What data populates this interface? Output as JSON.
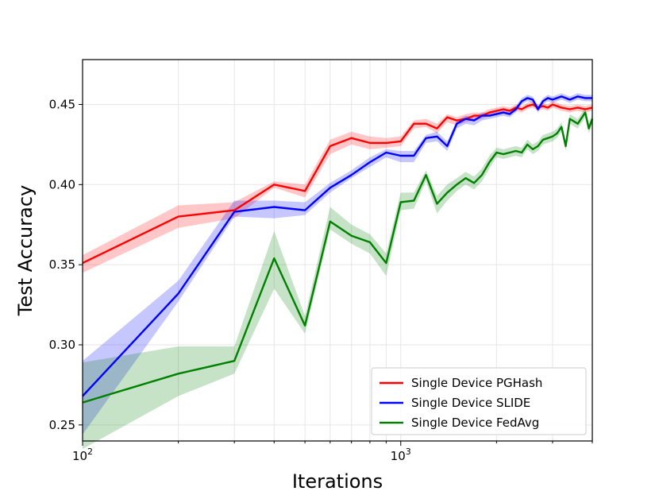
{
  "chart_data": {
    "type": "line",
    "xlabel": "Iterations",
    "ylabel": "Test Accuracy",
    "xscale": "log",
    "xlim": [
      100,
      4000
    ],
    "ylim": [
      0.24,
      0.478
    ],
    "grid": true,
    "legend_position": "lower-right",
    "x_ticks": [
      {
        "value": 100,
        "base": "10",
        "exp": "2"
      },
      {
        "value": 1000,
        "base": "10",
        "exp": "3"
      }
    ],
    "y_ticks": [
      {
        "value": 0.25,
        "label": "0.25"
      },
      {
        "value": 0.3,
        "label": "0.30"
      },
      {
        "value": 0.35,
        "label": "0.35"
      },
      {
        "value": 0.4,
        "label": "0.40"
      },
      {
        "value": 0.45,
        "label": "0.45"
      }
    ],
    "series": [
      {
        "name": "Single Device PGHash",
        "color": "#ff0000",
        "points": [
          [
            100,
            0.351,
            0.345,
            0.356
          ],
          [
            200,
            0.38,
            0.373,
            0.387
          ],
          [
            300,
            0.384,
            0.379,
            0.389
          ],
          [
            400,
            0.4,
            0.398,
            0.402
          ],
          [
            500,
            0.396,
            0.392,
            0.4
          ],
          [
            600,
            0.424,
            0.419,
            0.428
          ],
          [
            700,
            0.429,
            0.425,
            0.433
          ],
          [
            800,
            0.426,
            0.422,
            0.43
          ],
          [
            900,
            0.426,
            0.423,
            0.429
          ],
          [
            1000,
            0.427,
            0.424,
            0.43
          ],
          [
            1100,
            0.438,
            0.435,
            0.44
          ],
          [
            1200,
            0.438,
            0.436,
            0.441
          ],
          [
            1300,
            0.435,
            0.432,
            0.438
          ],
          [
            1400,
            0.442,
            0.439,
            0.444
          ],
          [
            1500,
            0.44,
            0.437,
            0.442
          ],
          [
            1600,
            0.441,
            0.439,
            0.444
          ],
          [
            1700,
            0.443,
            0.44,
            0.445
          ],
          [
            1800,
            0.443,
            0.441,
            0.445
          ],
          [
            1900,
            0.445,
            0.443,
            0.447
          ],
          [
            2000,
            0.446,
            0.444,
            0.448
          ],
          [
            2100,
            0.447,
            0.445,
            0.449
          ],
          [
            2200,
            0.446,
            0.444,
            0.448
          ],
          [
            2300,
            0.448,
            0.446,
            0.45
          ],
          [
            2400,
            0.447,
            0.445,
            0.449
          ],
          [
            2500,
            0.449,
            0.447,
            0.451
          ],
          [
            2600,
            0.45,
            0.448,
            0.452
          ],
          [
            2700,
            0.448,
            0.446,
            0.45
          ],
          [
            2800,
            0.449,
            0.447,
            0.451
          ],
          [
            2900,
            0.448,
            0.446,
            0.45
          ],
          [
            3000,
            0.45,
            0.448,
            0.452
          ],
          [
            3200,
            0.448,
            0.446,
            0.45
          ],
          [
            3400,
            0.447,
            0.445,
            0.449
          ],
          [
            3600,
            0.448,
            0.446,
            0.45
          ],
          [
            3800,
            0.447,
            0.445,
            0.449
          ],
          [
            4000,
            0.448,
            0.446,
            0.45
          ]
        ]
      },
      {
        "name": "Single Device SLIDE",
        "color": "#0000ff",
        "points": [
          [
            100,
            0.268,
            0.244,
            0.29
          ],
          [
            200,
            0.332,
            0.327,
            0.34
          ],
          [
            300,
            0.383,
            0.38,
            0.39
          ],
          [
            400,
            0.386,
            0.379,
            0.39
          ],
          [
            500,
            0.384,
            0.381,
            0.389
          ],
          [
            600,
            0.398,
            0.395,
            0.401
          ],
          [
            700,
            0.406,
            0.404,
            0.409
          ],
          [
            800,
            0.414,
            0.411,
            0.417
          ],
          [
            900,
            0.42,
            0.417,
            0.422
          ],
          [
            1000,
            0.418,
            0.414,
            0.421
          ],
          [
            1100,
            0.418,
            0.414,
            0.421
          ],
          [
            1200,
            0.429,
            0.426,
            0.431
          ],
          [
            1300,
            0.43,
            0.427,
            0.433
          ],
          [
            1400,
            0.424,
            0.421,
            0.427
          ],
          [
            1500,
            0.438,
            0.435,
            0.44
          ],
          [
            1600,
            0.441,
            0.438,
            0.443
          ],
          [
            1700,
            0.44,
            0.437,
            0.442
          ],
          [
            1800,
            0.443,
            0.44,
            0.445
          ],
          [
            1900,
            0.443,
            0.441,
            0.445
          ],
          [
            2000,
            0.444,
            0.442,
            0.446
          ],
          [
            2100,
            0.445,
            0.443,
            0.447
          ],
          [
            2200,
            0.444,
            0.442,
            0.446
          ],
          [
            2300,
            0.447,
            0.445,
            0.449
          ],
          [
            2400,
            0.452,
            0.45,
            0.454
          ],
          [
            2500,
            0.454,
            0.452,
            0.456
          ],
          [
            2600,
            0.453,
            0.451,
            0.455
          ],
          [
            2700,
            0.447,
            0.445,
            0.449
          ],
          [
            2800,
            0.452,
            0.45,
            0.454
          ],
          [
            2900,
            0.454,
            0.452,
            0.456
          ],
          [
            3000,
            0.453,
            0.451,
            0.455
          ],
          [
            3200,
            0.455,
            0.453,
            0.457
          ],
          [
            3400,
            0.453,
            0.451,
            0.455
          ],
          [
            3600,
            0.455,
            0.453,
            0.457
          ],
          [
            3800,
            0.454,
            0.452,
            0.456
          ],
          [
            4000,
            0.454,
            0.452,
            0.456
          ]
        ]
      },
      {
        "name": "Single Device FedAvg",
        "color": "#008000",
        "points": [
          [
            100,
            0.264,
            0.235,
            0.289
          ],
          [
            200,
            0.282,
            0.268,
            0.299
          ],
          [
            300,
            0.29,
            0.282,
            0.299
          ],
          [
            400,
            0.354,
            0.335,
            0.371
          ],
          [
            500,
            0.312,
            0.307,
            0.318
          ],
          [
            600,
            0.377,
            0.372,
            0.386
          ],
          [
            700,
            0.368,
            0.363,
            0.375
          ],
          [
            800,
            0.364,
            0.357,
            0.369
          ],
          [
            900,
            0.351,
            0.343,
            0.357
          ],
          [
            1000,
            0.389,
            0.384,
            0.395
          ],
          [
            1100,
            0.39,
            0.385,
            0.395
          ],
          [
            1200,
            0.406,
            0.402,
            0.409
          ],
          [
            1300,
            0.388,
            0.382,
            0.393
          ],
          [
            1400,
            0.395,
            0.39,
            0.4
          ],
          [
            1500,
            0.4,
            0.396,
            0.404
          ],
          [
            1600,
            0.404,
            0.4,
            0.408
          ],
          [
            1700,
            0.401,
            0.397,
            0.405
          ],
          [
            1800,
            0.406,
            0.402,
            0.41
          ],
          [
            1900,
            0.414,
            0.41,
            0.418
          ],
          [
            2000,
            0.42,
            0.417,
            0.423
          ],
          [
            2100,
            0.419,
            0.416,
            0.422
          ],
          [
            2200,
            0.42,
            0.417,
            0.423
          ],
          [
            2300,
            0.421,
            0.418,
            0.424
          ],
          [
            2400,
            0.42,
            0.417,
            0.423
          ],
          [
            2500,
            0.425,
            0.422,
            0.428
          ],
          [
            2600,
            0.422,
            0.419,
            0.425
          ],
          [
            2700,
            0.424,
            0.421,
            0.427
          ],
          [
            2800,
            0.428,
            0.425,
            0.431
          ],
          [
            2900,
            0.429,
            0.426,
            0.432
          ],
          [
            3000,
            0.43,
            0.427,
            0.433
          ],
          [
            3100,
            0.432,
            0.429,
            0.435
          ],
          [
            3200,
            0.436,
            0.433,
            0.439
          ],
          [
            3300,
            0.424,
            0.421,
            0.427
          ],
          [
            3400,
            0.441,
            0.438,
            0.444
          ],
          [
            3600,
            0.438,
            0.435,
            0.441
          ],
          [
            3800,
            0.445,
            0.442,
            0.448
          ],
          [
            3900,
            0.435,
            0.432,
            0.438
          ],
          [
            4000,
            0.441,
            0.438,
            0.444
          ]
        ]
      }
    ]
  }
}
